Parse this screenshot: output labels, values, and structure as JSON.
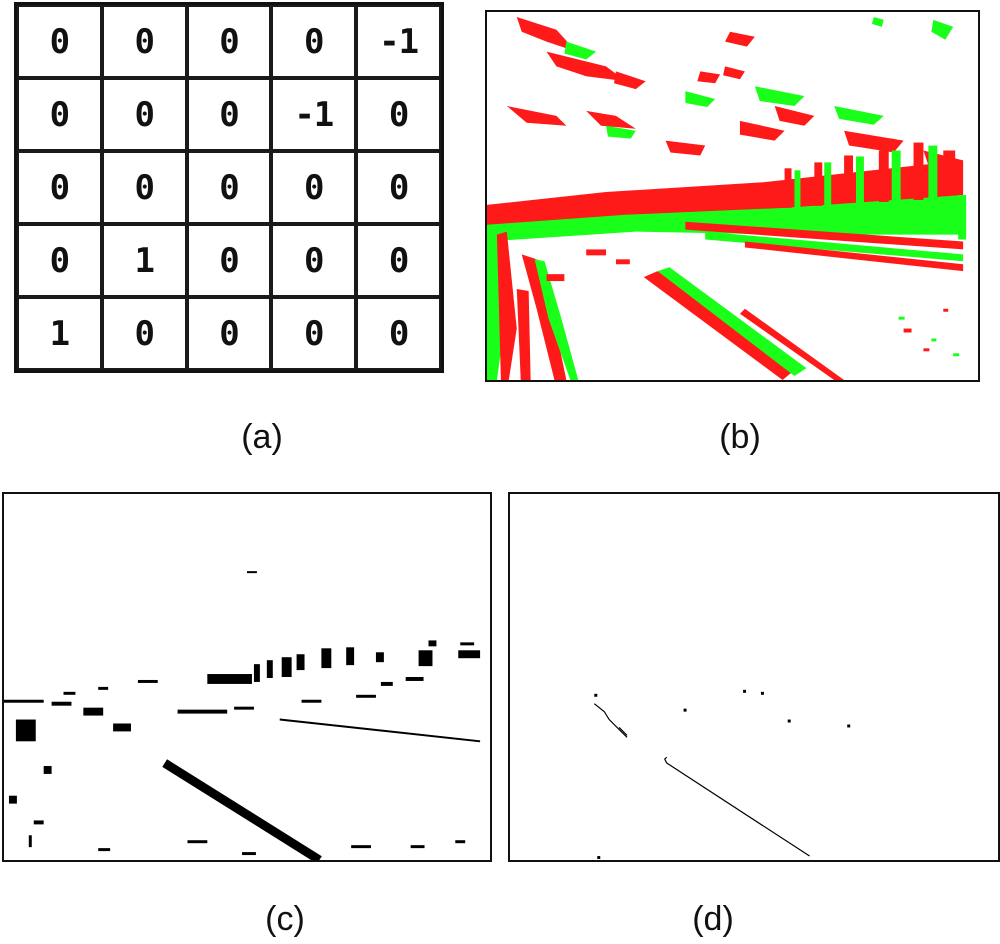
{
  "kernel": {
    "rows": [
      [
        "0",
        "0",
        "0",
        "0",
        "-1"
      ],
      [
        "0",
        "0",
        "0",
        "-1",
        "0"
      ],
      [
        "0",
        "0",
        "0",
        "0",
        "0"
      ],
      [
        "0",
        "1",
        "0",
        "0",
        "0"
      ],
      [
        "1",
        "0",
        "0",
        "0",
        "0"
      ]
    ]
  },
  "captions": {
    "a": "(a)",
    "b": "(b)",
    "c": "(c)",
    "d": "(d)"
  },
  "colors": {
    "positive_response": "#ff1a1a",
    "negative_response": "#1aff1a",
    "binary_edges": "#000000"
  }
}
